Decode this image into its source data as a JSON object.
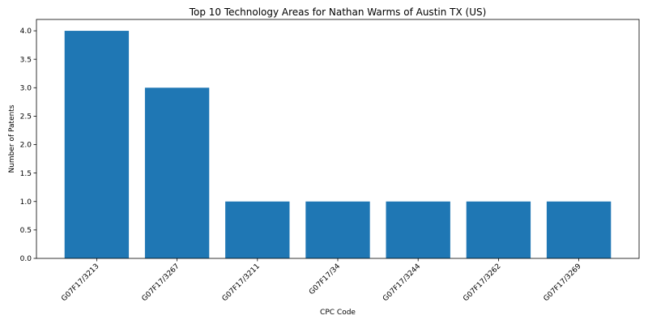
{
  "chart_data": {
    "type": "bar",
    "title": "Top 10 Technology Areas for Nathan Warms of Austin TX (US)",
    "xlabel": "CPC Code",
    "ylabel": "Number of Patents",
    "categories": [
      "G07F17/3213",
      "G07F17/3267",
      "G07F17/3211",
      "G07F17/34",
      "G07F17/3244",
      "G07F17/3262",
      "G07F17/3269"
    ],
    "values": [
      4,
      3,
      1,
      1,
      1,
      1,
      1
    ],
    "ylim": [
      0,
      4.2
    ],
    "yticks": [
      0.0,
      0.5,
      1.0,
      1.5,
      2.0,
      2.5,
      3.0,
      3.5,
      4.0
    ],
    "ytick_labels": [
      "0.0",
      "0.5",
      "1.0",
      "1.5",
      "2.0",
      "2.5",
      "3.0",
      "3.5",
      "4.0"
    ],
    "bar_color": "#1f77b4",
    "grid": false,
    "legend": false
  }
}
